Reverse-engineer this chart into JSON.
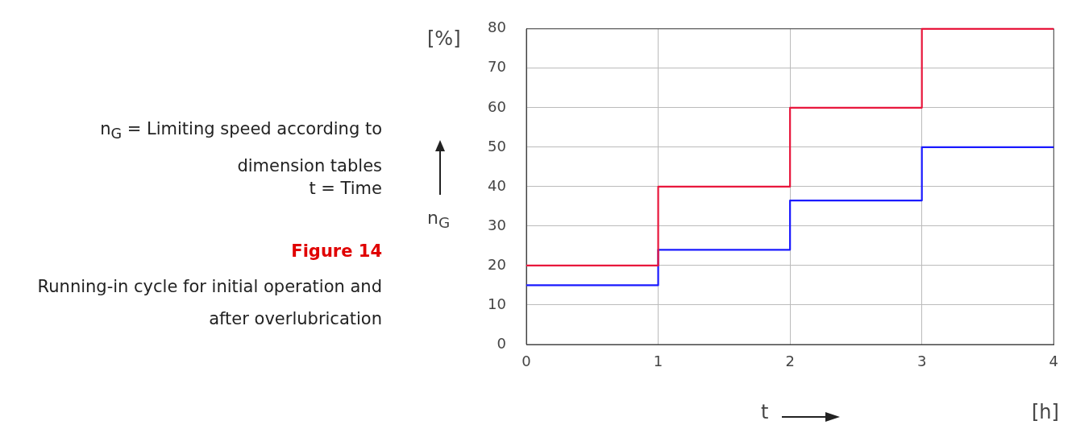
{
  "chart_data": {
    "type": "step",
    "title": "Figure 14",
    "subtitle": "Running-in cycle for initial operation and after overlubrication",
    "xlabel": "t",
    "ylabel": "n$_{G}$",
    "annotations": [
      "n$_{G}$ = Limiting speed according to dimension tables",
      "t = Time",
      "[%]",
      "[h]"
    ],
    "x": [
      0,
      1,
      2,
      3,
      4
    ],
    "series": [
      {
        "color": "#e8173c",
        "values": [
          20,
          40,
          60,
          80,
          80
        ]
      },
      {
        "color": "#1a1aff",
        "values": [
          15,
          24,
          36.5,
          50,
          50
        ]
      }
    ],
    "xlim": [
      0,
      4
    ],
    "xticks": [
      0,
      1,
      2,
      3,
      4
    ],
    "ylim": [
      0,
      80
    ],
    "yticks": [
      0,
      10,
      20,
      30,
      40,
      50,
      60,
      70,
      80
    ],
    "grid": true,
    "marker": "none",
    "line_style": "solid"
  }
}
